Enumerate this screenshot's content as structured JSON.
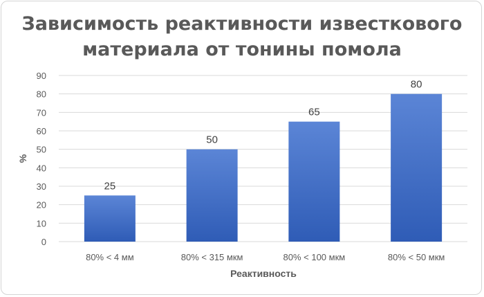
{
  "chart_data": {
    "type": "bar",
    "title": [
      "Зависимость реактивности известкового",
      "материала от тонины помола"
    ],
    "xlabel": "Реактивность",
    "ylabel": "%",
    "categories": [
      "80% < 4 мм",
      "80% < 315 мкм",
      "80% < 100 мкм",
      "80% < 50 мкм"
    ],
    "values": [
      25,
      50,
      65,
      80
    ],
    "data_labels": [
      "25",
      "50",
      "65",
      "80"
    ],
    "ylim": [
      0,
      90
    ],
    "yticks": [
      "0",
      "10",
      "20",
      "30",
      "40",
      "50",
      "60",
      "70",
      "80",
      "90"
    ],
    "grid": true,
    "legend": "none",
    "colors": {
      "bar_top": "#5b85d6",
      "bar_bottom": "#2f5cb6",
      "grid": "#d9d9d9",
      "text": "#595959",
      "title": "#595959"
    }
  }
}
